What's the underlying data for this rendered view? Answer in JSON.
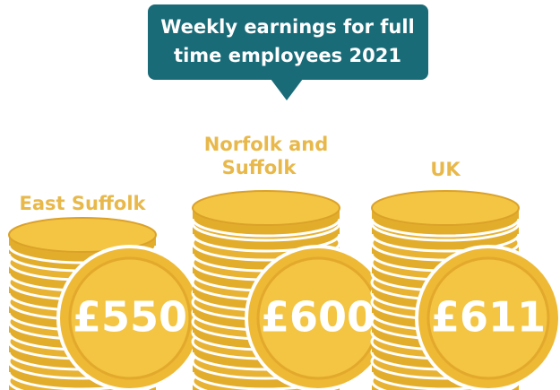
{
  "title": [
    "Weekly earnings for full",
    "time employees 2021"
  ],
  "items": [
    {
      "label": [
        "East Suffolk"
      ],
      "value": "£550"
    },
    {
      "label": [
        "Norfolk and",
        "Suffolk"
      ],
      "value": "£600"
    },
    {
      "label": [
        "UK"
      ],
      "value": "£611"
    }
  ]
}
